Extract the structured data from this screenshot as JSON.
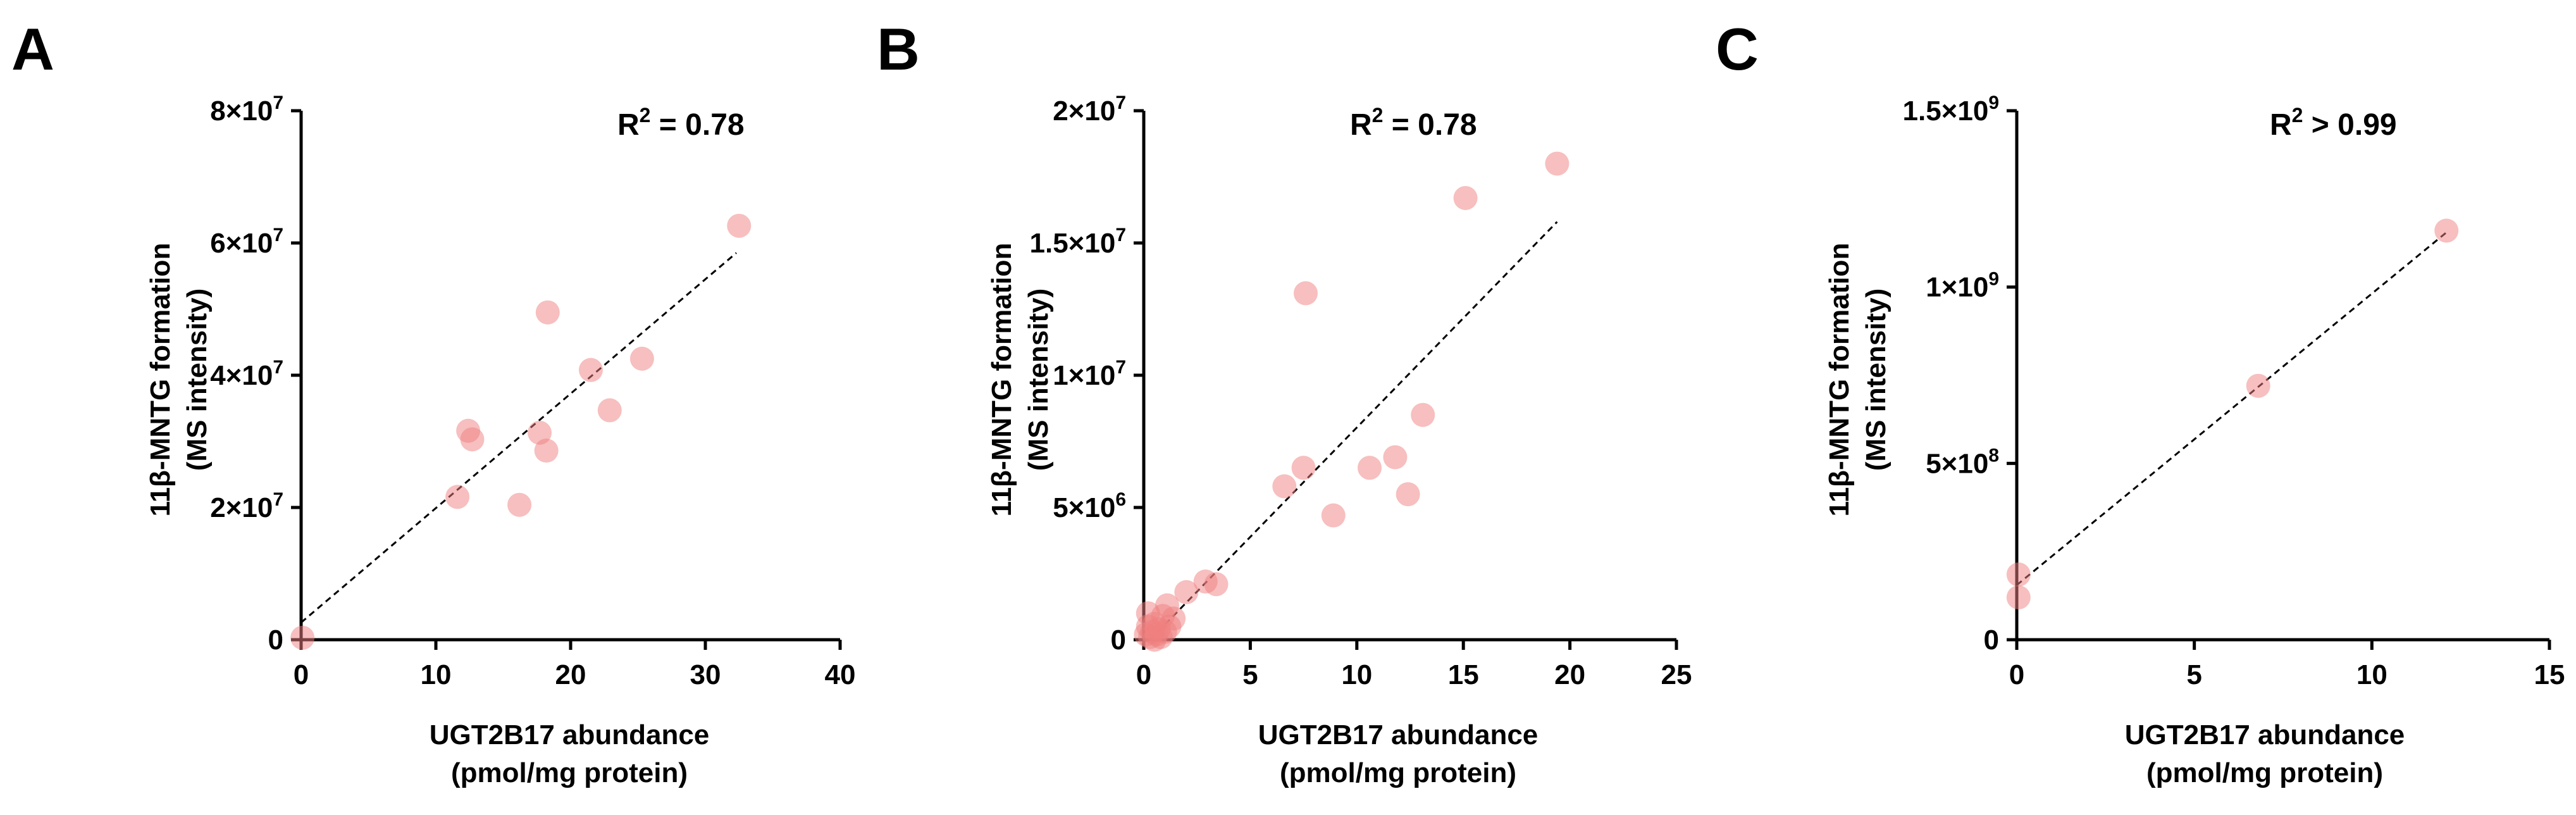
{
  "chart_data": [
    {
      "type": "scatter",
      "panel": "A",
      "xlabel": [
        "UGT2B17 abundance",
        "(pmol/mg protein)"
      ],
      "ylabel": [
        "11β-MNTG formation",
        "(MS intensity)"
      ],
      "xlim": [
        0,
        40
      ],
      "ylim": [
        0,
        80000000
      ],
      "xticks": [
        0,
        10,
        20,
        30,
        40
      ],
      "xtick_labels": [
        "0",
        "10",
        "20",
        "30",
        "40"
      ],
      "yticks": [
        0,
        20000000,
        40000000,
        60000000,
        80000000
      ],
      "ytick_labels": [
        {
          "base": "0",
          "exp": ""
        },
        {
          "base": "2×10",
          "exp": "7"
        },
        {
          "base": "4×10",
          "exp": "7"
        },
        {
          "base": "6×10",
          "exp": "7"
        },
        {
          "base": "8×10",
          "exp": "7"
        }
      ],
      "annotation": {
        "pre": "R",
        "sup": "2",
        "post": " = 0.78"
      },
      "fit_line": {
        "x": [
          0,
          32.3
        ],
        "y": [
          2600000,
          58500000
        ]
      },
      "points": [
        {
          "x": 0.1,
          "y": 300000
        },
        {
          "x": 11.6,
          "y": 21600000
        },
        {
          "x": 12.4,
          "y": 31600000
        },
        {
          "x": 12.7,
          "y": 30300000
        },
        {
          "x": 16.2,
          "y": 20400000
        },
        {
          "x": 17.7,
          "y": 31300000
        },
        {
          "x": 18.2,
          "y": 28600000
        },
        {
          "x": 18.3,
          "y": 49500000
        },
        {
          "x": 21.5,
          "y": 40800000
        },
        {
          "x": 22.9,
          "y": 34700000
        },
        {
          "x": 25.3,
          "y": 42500000
        },
        {
          "x": 32.5,
          "y": 62600000
        }
      ]
    },
    {
      "type": "scatter",
      "panel": "B",
      "xlabel": [
        "UGT2B17 abundance",
        "(pmol/mg protein)"
      ],
      "ylabel": [
        "11β-MNTG formation",
        "(MS intensity)"
      ],
      "xlim": [
        0,
        25
      ],
      "ylim": [
        0,
        20000000
      ],
      "xticks": [
        0,
        5,
        10,
        15,
        20,
        25
      ],
      "xtick_labels": [
        "0",
        "5",
        "10",
        "15",
        "20",
        "25"
      ],
      "yticks": [
        0,
        5000000,
        10000000,
        15000000,
        20000000
      ],
      "ytick_labels": [
        {
          "base": "0",
          "exp": ""
        },
        {
          "base": "5×10",
          "exp": "6"
        },
        {
          "base": "1×10",
          "exp": "7"
        },
        {
          "base": "1.5×10",
          "exp": "7"
        },
        {
          "base": "2×10",
          "exp": "7"
        }
      ],
      "annotation": {
        "pre": "R",
        "sup": "2",
        "post": " = 0.78"
      },
      "fit_line": {
        "x": [
          0.3,
          19.4
        ],
        "y": [
          0,
          15800000
        ]
      },
      "points": [
        {
          "x": 0.1,
          "y": 200000
        },
        {
          "x": 0.2,
          "y": 500000
        },
        {
          "x": 0.2,
          "y": 1000000
        },
        {
          "x": 0.3,
          "y": 100000
        },
        {
          "x": 0.4,
          "y": 300000
        },
        {
          "x": 0.5,
          "y": 0
        },
        {
          "x": 0.5,
          "y": 600000
        },
        {
          "x": 0.6,
          "y": 200000
        },
        {
          "x": 0.7,
          "y": 400000
        },
        {
          "x": 0.8,
          "y": 100000
        },
        {
          "x": 0.9,
          "y": 900000
        },
        {
          "x": 1.0,
          "y": 300000
        },
        {
          "x": 1.1,
          "y": 1300000
        },
        {
          "x": 1.2,
          "y": 500000
        },
        {
          "x": 1.4,
          "y": 800000
        },
        {
          "x": 2.0,
          "y": 1800000
        },
        {
          "x": 2.9,
          "y": 2200000
        },
        {
          "x": 3.4,
          "y": 2100000
        },
        {
          "x": 6.6,
          "y": 5800000
        },
        {
          "x": 7.5,
          "y": 6500000
        },
        {
          "x": 7.6,
          "y": 13100000
        },
        {
          "x": 8.9,
          "y": 4700000
        },
        {
          "x": 10.6,
          "y": 6500000
        },
        {
          "x": 11.8,
          "y": 6900000
        },
        {
          "x": 12.4,
          "y": 5500000
        },
        {
          "x": 13.1,
          "y": 8500000
        },
        {
          "x": 15.1,
          "y": 16700000
        },
        {
          "x": 19.4,
          "y": 18000000
        }
      ]
    },
    {
      "type": "scatter",
      "panel": "C",
      "xlabel": [
        "UGT2B17 abundance",
        "(pmol/mg protein)"
      ],
      "ylabel": [
        "11β-MNTG formation",
        "(MS intensity)"
      ],
      "xlim": [
        0,
        15
      ],
      "ylim": [
        0,
        1500000000
      ],
      "xticks": [
        0,
        5,
        10,
        15
      ],
      "xtick_labels": [
        "0",
        "5",
        "10",
        "15"
      ],
      "yticks": [
        0,
        500000000,
        1000000000,
        1500000000
      ],
      "ytick_labels": [
        {
          "base": "0",
          "exp": ""
        },
        {
          "base": "5×10",
          "exp": "8"
        },
        {
          "base": "1×10",
          "exp": "9"
        },
        {
          "base": "1.5×10",
          "exp": "9"
        }
      ],
      "annotation": {
        "pre": "R",
        "sup": "2",
        "post": " > 0.99"
      },
      "fit_line": {
        "x": [
          0,
          12.1
        ],
        "y": [
          155000000,
          1155000000
        ]
      },
      "points": [
        {
          "x": 0.05,
          "y": 120000000
        },
        {
          "x": 0.05,
          "y": 185000000
        },
        {
          "x": 6.8,
          "y": 720000000
        },
        {
          "x": 12.1,
          "y": 1160000000
        }
      ]
    }
  ]
}
